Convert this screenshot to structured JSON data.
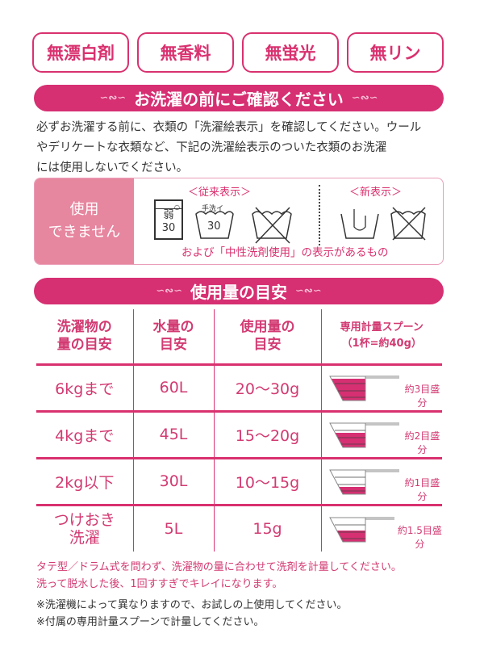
{
  "badges": [
    "無漂白剤",
    "無香料",
    "無蛍光",
    "無リン"
  ],
  "banner1": "お洗濯の前にご確認ください",
  "intro": [
    "必ずお洗濯する前に、衣類の「洗濯絵表示」を確認してください。ウール",
    "やデリケートな衣類など、下記の洗濯絵表示のついた衣類のお洗濯",
    "には使用しないでください。"
  ],
  "notice": {
    "left": [
      "使用",
      "できません"
    ],
    "old_label": "＜従来表示＞",
    "new_label": "＜新表示＞",
    "sym1_top": "弱",
    "sym1_bottom": "30",
    "sym2_top": "手洗イ",
    "sym2_bottom": "30",
    "caption": "および「中性洗剤使用」の表示があるもの"
  },
  "banner2": "使用量の目安",
  "table": {
    "headers": [
      [
        "洗濯物の",
        "量の目安"
      ],
      [
        "水量の",
        "目安"
      ],
      [
        "使用量の",
        "目安"
      ],
      [
        "専用計量スプーン",
        "（1杯=約40g）"
      ]
    ],
    "rows": [
      {
        "load": "6kgまで",
        "water": "60L",
        "amount": "20〜30g",
        "spoon": "約3目盛分",
        "fill_levels": 3
      },
      {
        "load": "4kgまで",
        "water": "45L",
        "amount": "15〜20g",
        "spoon": "約2目盛分",
        "fill_levels": 2
      },
      {
        "load": "2kg以下",
        "water": "30L",
        "amount": "10〜15g",
        "spoon": "約1目盛分",
        "fill_levels": 1
      },
      {
        "load": "つけおき\n洗濯",
        "water": "5L",
        "amount": "15g",
        "spoon": "約1.5目盛分",
        "fill_levels": 1.5
      }
    ]
  },
  "notes_pink": [
    "タテ型／ドラム式を問わず、洗濯物の量に合わせて洗剤を計量してください。",
    "洗って脱水した後、1回すすぎでキレイになります。"
  ],
  "notes": [
    "※洗濯機によって異なりますので、お試しの上使用してください。",
    "※付属の専用計量スプーンで計量してください。"
  ],
  "colors": {
    "accent": "#d62f72",
    "pink_cell": "#e7869f"
  }
}
